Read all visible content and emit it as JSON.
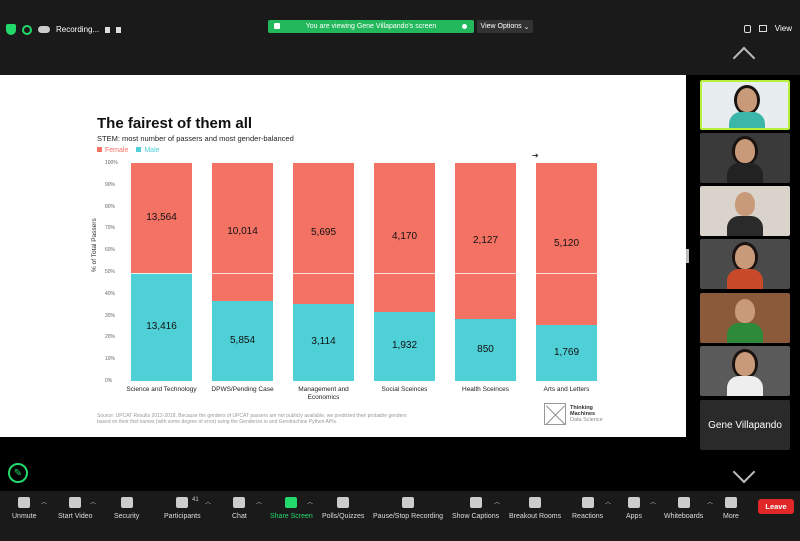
{
  "top": {
    "recording_label": "Recording...",
    "banner_text": "You are viewing Gene Villapando's screen",
    "view_options": "View Options",
    "view_label": "View"
  },
  "slide": {
    "title": "The fairest of them all",
    "subtitle": "STEM: most number of passers and most gender-balanced",
    "legend": [
      {
        "label": "Female",
        "color": "#f47264"
      },
      {
        "label": "Male",
        "color": "#4fcfd6"
      }
    ],
    "ylabel": "% of Total Passers",
    "yticks": [
      "100%",
      "90%",
      "80%",
      "70%",
      "60%",
      "50%",
      "40%",
      "30%",
      "20%",
      "10%",
      "0%"
    ],
    "source": "Source: UPCAT Results 2012-2018. Because the genders of UPCAT passers are not publicly available, we predicted their probable genders based on their first names (with some degree of error) using the Genderize.io and Gendrachine Python APIs.",
    "logo_lines": [
      "Thinking",
      "Machines",
      "Data Science"
    ]
  },
  "chart_data": {
    "type": "bar",
    "stacked": true,
    "normalized": true,
    "categories": [
      "Science and Technology",
      "DPWS/Pending Case",
      "Management and Economics",
      "Social Sceinces",
      "Health Sceinces",
      "Arts and Letters"
    ],
    "series": [
      {
        "name": "Male",
        "values": [
          13416,
          5854,
          3114,
          1932,
          850,
          1769
        ],
        "color": "#4fcfd6"
      },
      {
        "name": "Female",
        "values": [
          13564,
          10014,
          5695,
          4170,
          2127,
          5120
        ],
        "color": "#f47264"
      }
    ],
    "ylabel": "% of Total Passers",
    "ylim": [
      0,
      100
    ]
  },
  "participants": {
    "name_tile": "Gene Villapando"
  },
  "toolbar": {
    "unmute": "Unmute",
    "start_video": "Start Video",
    "security": "Security",
    "participants": "Participants",
    "participants_count": "41",
    "chat": "Chat",
    "share_screen": "Share Screen",
    "polls": "Polls/Quizzes",
    "pause_recording": "Pause/Stop Recording",
    "captions": "Show Captions",
    "breakout": "Breakout Rooms",
    "reactions": "Reactions",
    "apps": "Apps",
    "whiteboards": "Whiteboards",
    "more": "More",
    "leave": "Leave"
  }
}
